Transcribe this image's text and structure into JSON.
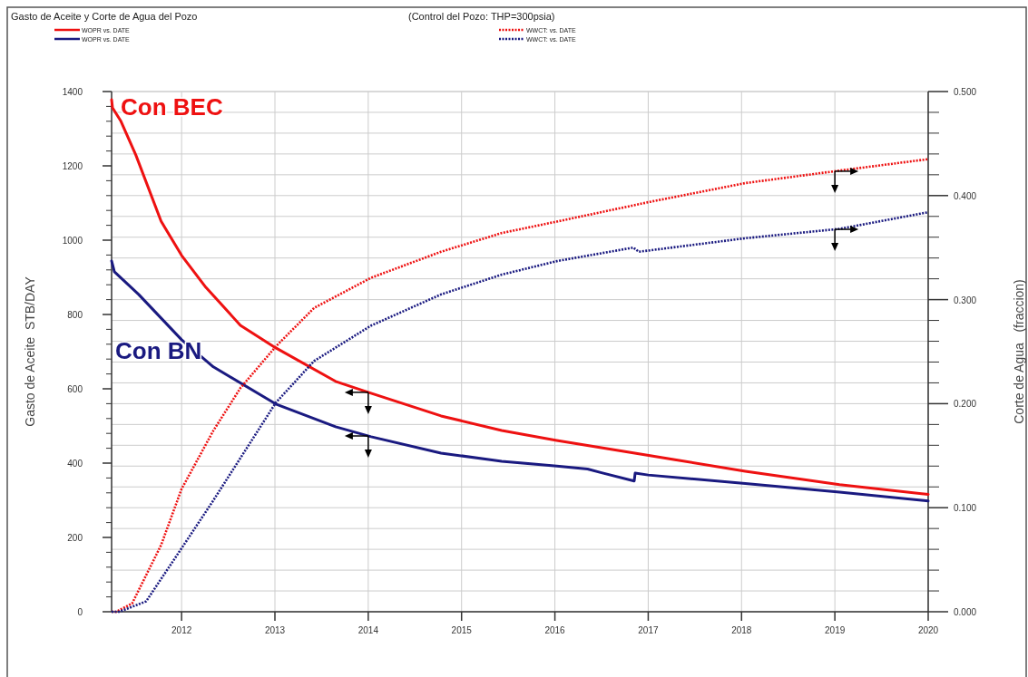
{
  "chart_data": {
    "type": "line",
    "title": "Gasto de Aceite y Corte de Agua del Pozo",
    "subtitle": "(Control del Pozo: THP=300psia)",
    "ylabel": "Gasto de Aceite  STB/DAY",
    "y2label": "Corte de Agua   (fraccion)",
    "xlim": [
      2011.25,
      2020.0
    ],
    "xticks": [
      2012,
      2013,
      2014,
      2015,
      2016,
      2017,
      2018,
      2019,
      2020
    ],
    "ylim": [
      0,
      1400
    ],
    "yticks": [
      0,
      {
        "value": 40,
        "label": null
      },
      {
        "value": 80,
        "label": null
      },
      {
        "value": 120,
        "label": null
      },
      {
        "value": 160,
        "label": null
      },
      200,
      {
        "value": 240,
        "label": null
      },
      {
        "value": 280,
        "label": null
      },
      {
        "value": 320,
        "label": null
      },
      {
        "value": 360,
        "label": null
      },
      400,
      {
        "value": 440,
        "label": null
      },
      {
        "value": 480,
        "label": null
      },
      {
        "value": 520,
        "label": null
      },
      {
        "value": 560,
        "label": null
      },
      600,
      {
        "value": 640,
        "label": null
      },
      {
        "value": 680,
        "label": null
      },
      {
        "value": 720,
        "label": null
      },
      {
        "value": 760,
        "label": null
      },
      800,
      {
        "value": 840,
        "label": null
      },
      {
        "value": 880,
        "label": null
      },
      {
        "value": 920,
        "label": null
      },
      {
        "value": 960,
        "label": null
      },
      1000,
      {
        "value": 1040,
        "label": null
      },
      {
        "value": 1080,
        "label": null
      },
      {
        "value": 1120,
        "label": null
      },
      {
        "value": 1160,
        "label": null
      },
      1200,
      {
        "value": 1240,
        "label": null
      },
      {
        "value": 1280,
        "label": null
      },
      {
        "value": 1320,
        "label": null
      },
      {
        "value": 1360,
        "label": null
      },
      1400
    ],
    "y2lim": [
      0,
      0.5
    ],
    "y2ticks": [
      {
        "value": 0,
        "label": "0.000"
      },
      {
        "value": 0.02,
        "label": null
      },
      {
        "value": 0.04,
        "label": null
      },
      {
        "value": 0.06,
        "label": null
      },
      {
        "value": 0.08,
        "label": null
      },
      {
        "value": 0.1,
        "label": "0.100"
      },
      {
        "value": 0.12,
        "label": null
      },
      {
        "value": 0.14,
        "label": null
      },
      {
        "value": 0.16,
        "label": null
      },
      {
        "value": 0.18,
        "label": null
      },
      {
        "value": 0.2,
        "label": "0.200"
      },
      {
        "value": 0.22,
        "label": null
      },
      {
        "value": 0.24,
        "label": null
      },
      {
        "value": 0.26,
        "label": null
      },
      {
        "value": 0.28,
        "label": null
      },
      {
        "value": 0.3,
        "label": "0.300"
      },
      {
        "value": 0.32,
        "label": null
      },
      {
        "value": 0.34,
        "label": null
      },
      {
        "value": 0.36,
        "label": null
      },
      {
        "value": 0.38,
        "label": null
      },
      {
        "value": 0.4,
        "label": "0.400"
      },
      {
        "value": 0.42,
        "label": null
      },
      {
        "value": 0.44,
        "label": null
      },
      {
        "value": 0.46,
        "label": null
      },
      {
        "value": 0.48,
        "label": null
      },
      {
        "value": 0.5,
        "label": "0.500"
      }
    ],
    "grid": true,
    "legend": "top",
    "annotations": [
      "Con BEC",
      "Con BN"
    ],
    "series": [
      {
        "name": "WOPR vs. DATE",
        "color": "#ee1111",
        "line_style": "solid",
        "x": [
          2011.25,
          2011.26,
          2011.35,
          2011.51,
          2011.78,
          2012.0,
          2012.26,
          2012.63,
          2013.01,
          2013.65,
          2014.03,
          2014.78,
          2015.43,
          2016.02,
          2017.02,
          2018.04,
          2019.05,
          2020.0
        ],
        "values": [
          1378,
          1356,
          1320,
          1229,
          1051,
          959,
          873,
          771,
          710,
          620,
          588,
          527,
          488,
          461,
          420,
          378,
          342,
          316
        ]
      },
      {
        "name": "WOPR vs. DATE",
        "color": "#1a1a80",
        "line_style": "solid",
        "x": [
          2011.25,
          2011.28,
          2011.54,
          2012.0,
          2012.34,
          2013.01,
          2013.65,
          2014.03,
          2014.78,
          2015.43,
          2016.02,
          2016.35,
          2016.5,
          2016.85,
          2016.86,
          2017.0,
          2018.04,
          2019.05,
          2020.0
        ],
        "values": [
          944,
          915,
          854,
          732,
          659,
          559,
          498,
          471,
          427,
          405,
          392,
          384,
          374,
          352,
          373,
          368,
          345,
          322,
          298
        ]
      },
      {
        "name": "WWCT: vs. DATE",
        "color": "#ee1111",
        "line_style": "dotted",
        "axis": "y2",
        "x": [
          2011.25,
          2011.3,
          2011.47,
          2011.78,
          2012.0,
          2012.34,
          2012.63,
          2013.01,
          2013.42,
          2014.03,
          2014.78,
          2015.43,
          2016.02,
          2017.02,
          2018.04,
          2019.05,
          2020.0
        ],
        "values": [
          0,
          0,
          0.008,
          0.064,
          0.118,
          0.174,
          0.215,
          0.255,
          0.292,
          0.321,
          0.346,
          0.364,
          0.375,
          0.394,
          0.412,
          0.424,
          0.435
        ]
      },
      {
        "name": "WWCT: vs. DATE",
        "color": "#1a1a80",
        "line_style": "dotted",
        "axis": "y2",
        "x": [
          2011.25,
          2011.33,
          2011.62,
          2012.0,
          2012.34,
          2013.01,
          2013.42,
          2014.03,
          2014.78,
          2015.43,
          2016.02,
          2016.84,
          2016.9,
          2018.04,
          2019.05,
          2020.0
        ],
        "values": [
          0,
          0,
          0.01,
          0.061,
          0.107,
          0.201,
          0.241,
          0.275,
          0.305,
          0.324,
          0.337,
          0.35,
          0.346,
          0.359,
          0.368,
          0.384
        ]
      }
    ]
  }
}
